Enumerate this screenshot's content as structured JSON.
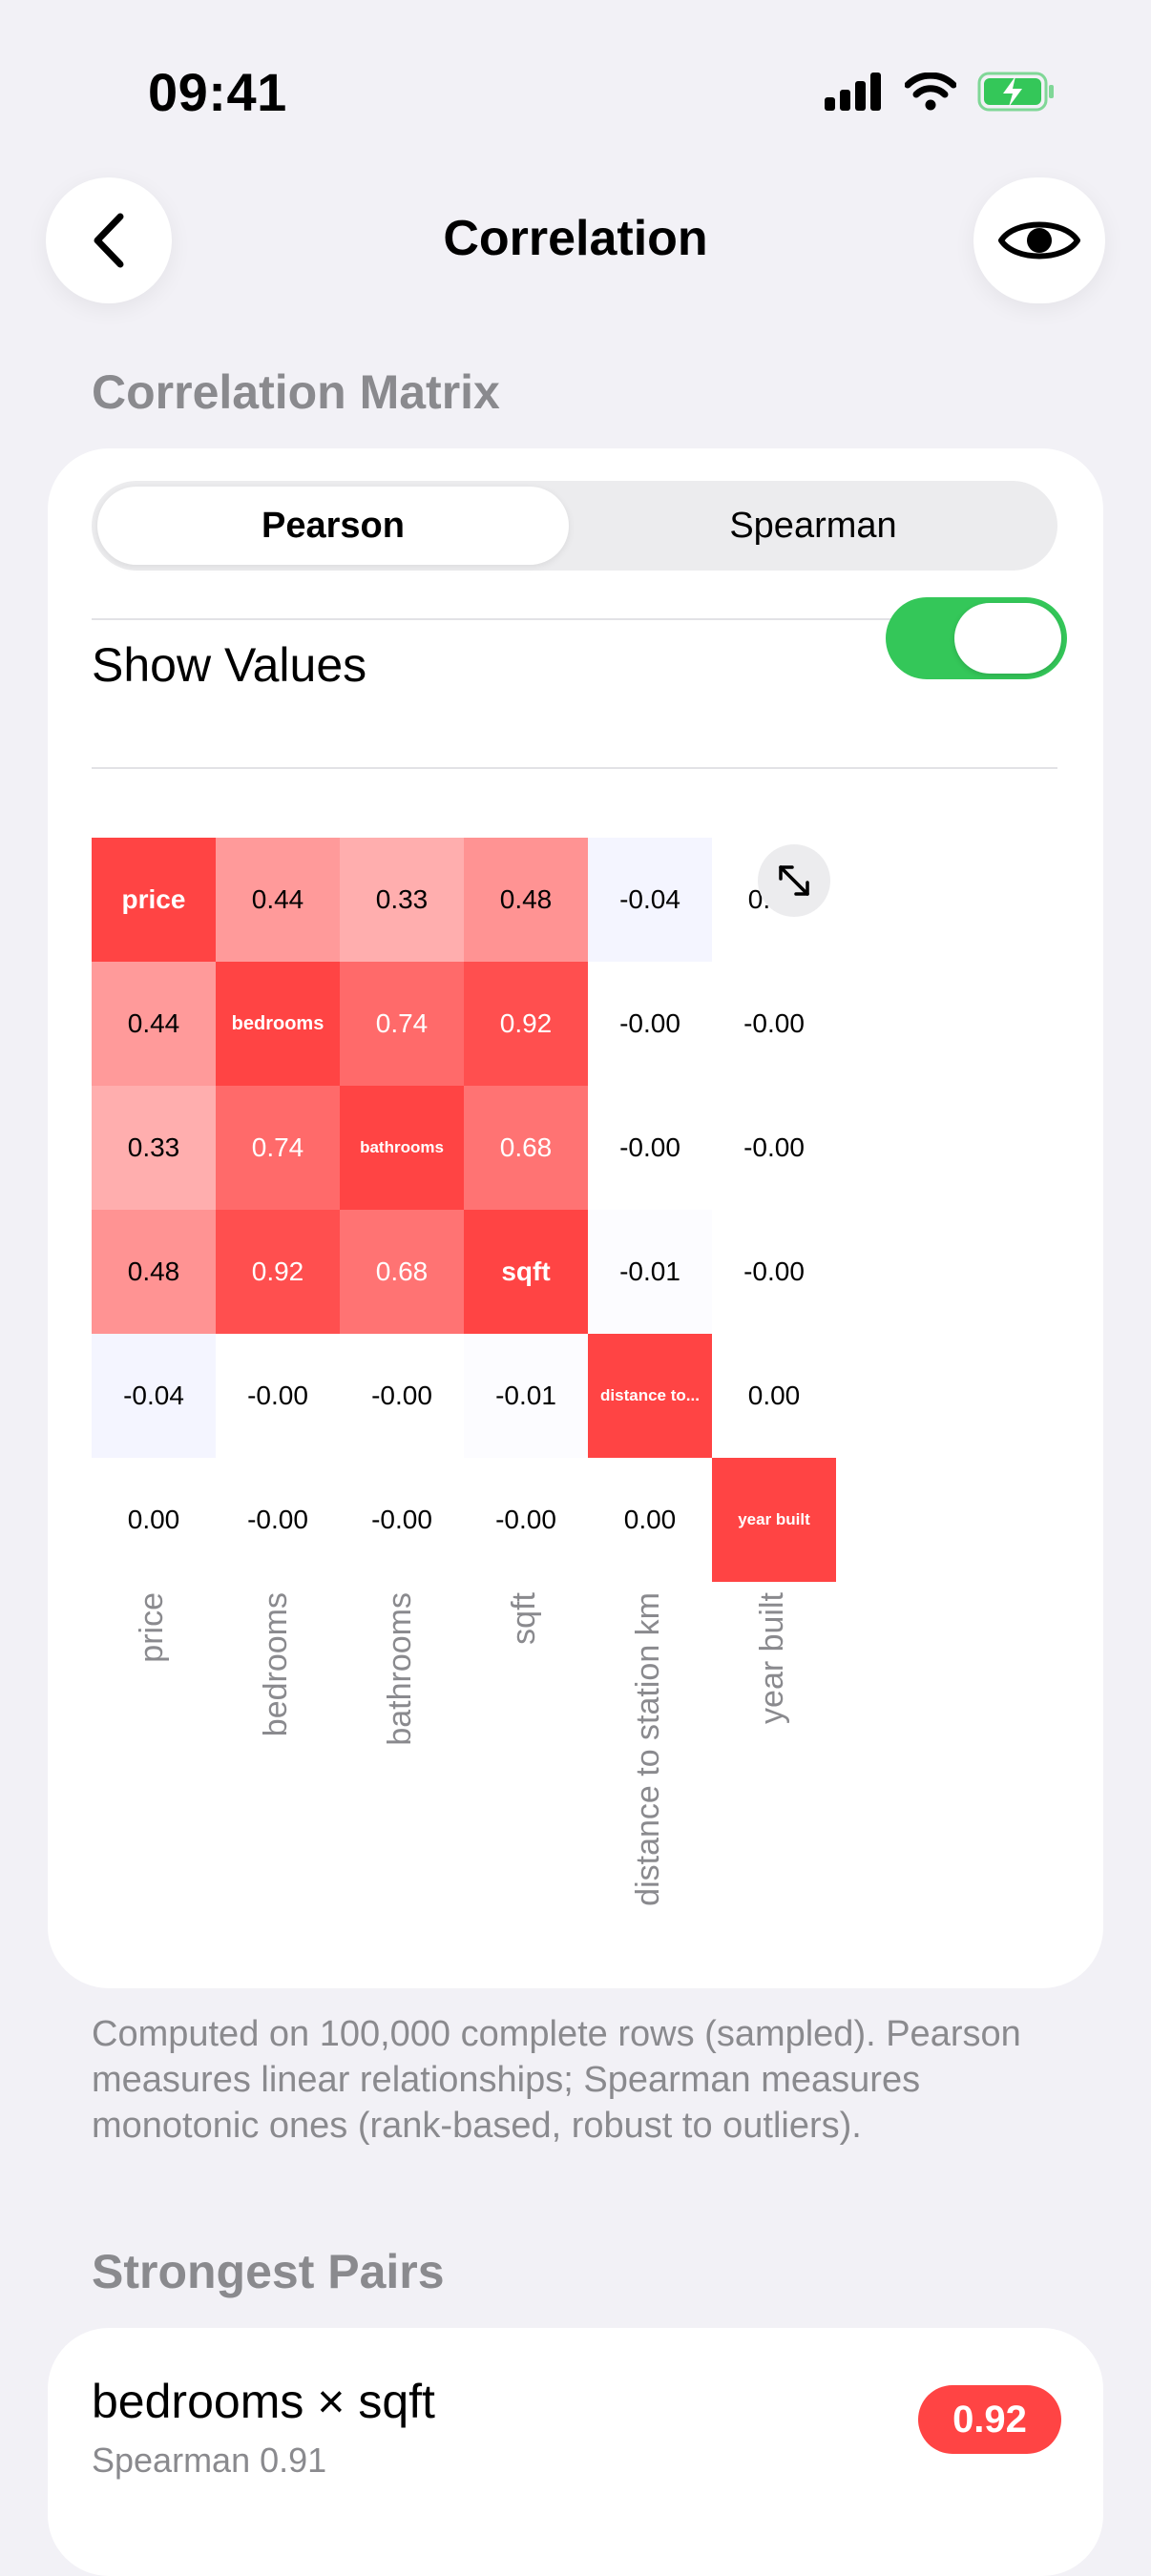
{
  "status_bar": {
    "time": "09:41"
  },
  "nav": {
    "title": "Correlation",
    "back_icon": "chevron-left-icon",
    "eye_icon": "eye-icon"
  },
  "matrix_section": {
    "header": "Correlation Matrix",
    "methods": [
      "Pearson",
      "Spearman"
    ],
    "selected_method": "Pearson",
    "show_values_label": "Show Values",
    "show_values_on": true,
    "expand_icon": "expand-arrows-icon"
  },
  "colors": {
    "positive": "#ff4444",
    "negative": "#e8eaff",
    "toggle_on": "#34c759"
  },
  "chart_data": {
    "type": "heatmap",
    "variables": [
      "price",
      "bedrooms",
      "bathrooms",
      "sqft",
      "distance to station km",
      "year built"
    ],
    "diagonal_labels": [
      "price",
      "bedrooms",
      "bathrooms",
      "sqft",
      "distance to...",
      "year built"
    ],
    "values": [
      [
        1.0,
        0.44,
        0.33,
        0.48,
        -0.04,
        0.0
      ],
      [
        0.44,
        1.0,
        0.74,
        0.92,
        -0.0,
        -0.0
      ],
      [
        0.33,
        0.74,
        1.0,
        0.68,
        -0.0,
        -0.0
      ],
      [
        0.48,
        0.92,
        0.68,
        1.0,
        -0.01,
        -0.0
      ],
      [
        -0.04,
        -0.0,
        -0.0,
        -0.01,
        1.0,
        0.0
      ],
      [
        0.0,
        -0.0,
        -0.0,
        -0.0,
        0.0,
        1.0
      ]
    ],
    "display": [
      [
        "price",
        "0.44",
        "0.33",
        "0.48",
        "-0.04",
        "0.00"
      ],
      [
        "0.44",
        "bedrooms",
        "0.74",
        "0.92",
        "-0.00",
        "-0.00"
      ],
      [
        "0.33",
        "0.74",
        "bathrooms",
        "0.68",
        "-0.00",
        "-0.00"
      ],
      [
        "0.48",
        "0.92",
        "0.68",
        "sqft",
        "-0.01",
        "-0.00"
      ],
      [
        "-0.04",
        "-0.00",
        "-0.00",
        "-0.01",
        "distance to...",
        "0.00"
      ],
      [
        "0.00",
        "-0.00",
        "-0.00",
        "-0.00",
        "0.00",
        "year built"
      ]
    ]
  },
  "footnote": "Computed on 100,000 complete rows (sampled). Pearson measures linear relationships; Spearman measures monotonic ones (rank-based, robust to outliers).",
  "pairs_section": {
    "header": "Strongest Pairs",
    "items": [
      {
        "title": "bedrooms × sqft",
        "subtitle": "Spearman 0.91",
        "value": "0.92"
      }
    ]
  }
}
